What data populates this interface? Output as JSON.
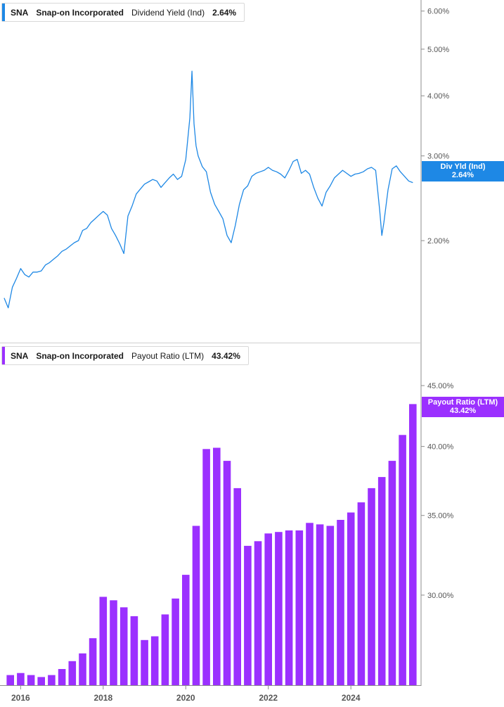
{
  "colors": {
    "top_series": "#1e88e5",
    "bottom_series": "#9b30ff",
    "axis": "#8c8c8c",
    "grid_text": "#555555"
  },
  "top_panel": {
    "ticker": "SNA",
    "company": "Snap-on Incorporated",
    "metric": "Dividend Yield (Ind)",
    "value": "2.64%",
    "tag_line1": "Div Yld (Ind)",
    "tag_line2": "2.64%"
  },
  "bottom_panel": {
    "ticker": "SNA",
    "company": "Snap-on Incorporated",
    "metric": "Payout Ratio (LTM)",
    "value": "43.42%",
    "tag_line1": "Payout Ratio (LTM)",
    "tag_line2": "43.42%"
  },
  "chart_data": [
    {
      "type": "line",
      "scale": "log",
      "series": [
        {
          "name": "Dividend Yield (Ind)",
          "x": [
            2015.6,
            2015.7,
            2015.8,
            2015.9,
            2016.0,
            2016.1,
            2016.2,
            2016.3,
            2016.4,
            2016.5,
            2016.6,
            2016.7,
            2016.8,
            2016.9,
            2017.0,
            2017.1,
            2017.2,
            2017.3,
            2017.4,
            2017.5,
            2017.6,
            2017.7,
            2017.8,
            2017.9,
            2018.0,
            2018.1,
            2018.2,
            2018.3,
            2018.4,
            2018.5,
            2018.6,
            2018.7,
            2018.8,
            2018.9,
            2019.0,
            2019.1,
            2019.2,
            2019.3,
            2019.4,
            2019.5,
            2019.6,
            2019.7,
            2019.8,
            2019.9,
            2020.0,
            2020.1,
            2020.15,
            2020.2,
            2020.25,
            2020.3,
            2020.4,
            2020.5,
            2020.6,
            2020.7,
            2020.8,
            2020.9,
            2021.0,
            2021.1,
            2021.2,
            2021.3,
            2021.4,
            2021.5,
            2021.6,
            2021.7,
            2021.8,
            2021.9,
            2022.0,
            2022.1,
            2022.2,
            2022.3,
            2022.4,
            2022.5,
            2022.6,
            2022.7,
            2022.8,
            2022.9,
            2023.0,
            2023.1,
            2023.2,
            2023.3,
            2023.4,
            2023.5,
            2023.6,
            2023.7,
            2023.8,
            2023.9,
            2024.0,
            2024.1,
            2024.2,
            2024.3,
            2024.4,
            2024.5,
            2024.6,
            2024.7,
            2024.75,
            2024.8,
            2024.9,
            2025.0,
            2025.1,
            2025.2,
            2025.3,
            2025.4,
            2025.5
          ],
          "values": [
            1.52,
            1.45,
            1.6,
            1.67,
            1.75,
            1.7,
            1.68,
            1.72,
            1.72,
            1.73,
            1.78,
            1.8,
            1.83,
            1.86,
            1.9,
            1.92,
            1.95,
            1.98,
            2.0,
            2.1,
            2.12,
            2.18,
            2.22,
            2.26,
            2.3,
            2.26,
            2.12,
            2.05,
            1.97,
            1.88,
            2.25,
            2.36,
            2.5,
            2.56,
            2.62,
            2.65,
            2.68,
            2.66,
            2.58,
            2.64,
            2.7,
            2.75,
            2.68,
            2.72,
            2.95,
            3.6,
            4.5,
            3.5,
            3.15,
            3.0,
            2.85,
            2.78,
            2.52,
            2.38,
            2.3,
            2.22,
            2.05,
            1.98,
            2.15,
            2.38,
            2.55,
            2.6,
            2.72,
            2.76,
            2.78,
            2.8,
            2.84,
            2.8,
            2.78,
            2.75,
            2.7,
            2.8,
            2.92,
            2.95,
            2.76,
            2.8,
            2.75,
            2.58,
            2.45,
            2.36,
            2.52,
            2.6,
            2.7,
            2.75,
            2.8,
            2.76,
            2.72,
            2.75,
            2.76,
            2.78,
            2.82,
            2.84,
            2.8,
            2.3,
            2.05,
            2.18,
            2.55,
            2.82,
            2.86,
            2.78,
            2.72,
            2.66,
            2.64
          ]
        }
      ],
      "ylim": [
        1.3,
        6.2
      ],
      "yticks": [
        "2.00%",
        "3.00%",
        "4.00%",
        "5.00%",
        "6.00%"
      ],
      "ytick_values": [
        2.0,
        3.0,
        4.0,
        5.0,
        6.0
      ]
    },
    {
      "type": "bar",
      "scale": "log",
      "series": [
        {
          "name": "Payout Ratio (LTM)",
          "x": [
            2015.75,
            2016.0,
            2016.25,
            2016.5,
            2016.75,
            2017.0,
            2017.25,
            2017.5,
            2017.75,
            2018.0,
            2018.25,
            2018.5,
            2018.75,
            2019.0,
            2019.25,
            2019.5,
            2019.75,
            2020.0,
            2020.25,
            2020.5,
            2020.75,
            2021.0,
            2021.25,
            2021.5,
            2021.75,
            2022.0,
            2022.25,
            2022.5,
            2022.75,
            2023.0,
            2023.25,
            2023.5,
            2023.75,
            2024.0,
            2024.25,
            2024.5,
            2024.75,
            2025.0,
            2025.25,
            2025.5
          ],
          "values": [
            25.7,
            25.8,
            25.7,
            25.6,
            25.7,
            26.0,
            26.4,
            26.8,
            27.6,
            29.9,
            29.7,
            29.3,
            28.8,
            27.5,
            27.7,
            28.9,
            29.8,
            31.2,
            34.3,
            39.8,
            39.9,
            38.9,
            36.9,
            33.0,
            33.3,
            33.8,
            33.9,
            34.0,
            34.0,
            34.5,
            34.4,
            34.3,
            34.7,
            35.2,
            35.9,
            36.9,
            37.7,
            38.9,
            40.9,
            43.42
          ]
        }
      ],
      "ylim": [
        25.2,
        45.5
      ],
      "yticks": [
        "30.00%",
        "35.00%",
        "40.00%",
        "45.00%"
      ],
      "ytick_values": [
        30,
        35,
        40,
        45
      ]
    }
  ],
  "x_axis": {
    "range": [
      2015.5,
      2025.7
    ],
    "tick_labels": [
      "2016",
      "2018",
      "2020",
      "2022",
      "2024"
    ],
    "tick_values": [
      2016,
      2018,
      2020,
      2022,
      2024
    ]
  }
}
